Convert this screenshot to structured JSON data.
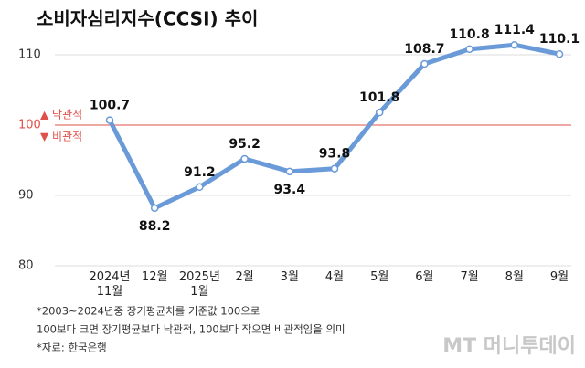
{
  "chart_data": {
    "type": "line",
    "title": "소비자심리지수(CCSI) 추이",
    "categories": [
      "2024년\n11월",
      "12월",
      "2025년\n1월",
      "2월",
      "3월",
      "4월",
      "5월",
      "6월",
      "7월",
      "8월",
      "9월"
    ],
    "values": [
      100.7,
      88.2,
      91.2,
      95.2,
      93.4,
      93.8,
      101.8,
      108.7,
      110.8,
      111.4,
      110.1
    ],
    "color": "#6a9bd8",
    "ylim": [
      80,
      113
    ],
    "yticks": [
      80,
      90,
      100,
      110
    ],
    "grid": true,
    "reference_line": {
      "value": 100,
      "color": "#e0504a",
      "above_label": "▲ 낙관적",
      "below_label": "▼ 비관적"
    },
    "footnotes": [
      "*2003~2024년중 장기평균치를 기준값 100으로",
      "100보다 크면 장기평균보다 낙관적, 100보다 작으면 비관적임을 의미",
      "*자료: 한국은행"
    ],
    "watermark": "MT 머니투데이"
  }
}
